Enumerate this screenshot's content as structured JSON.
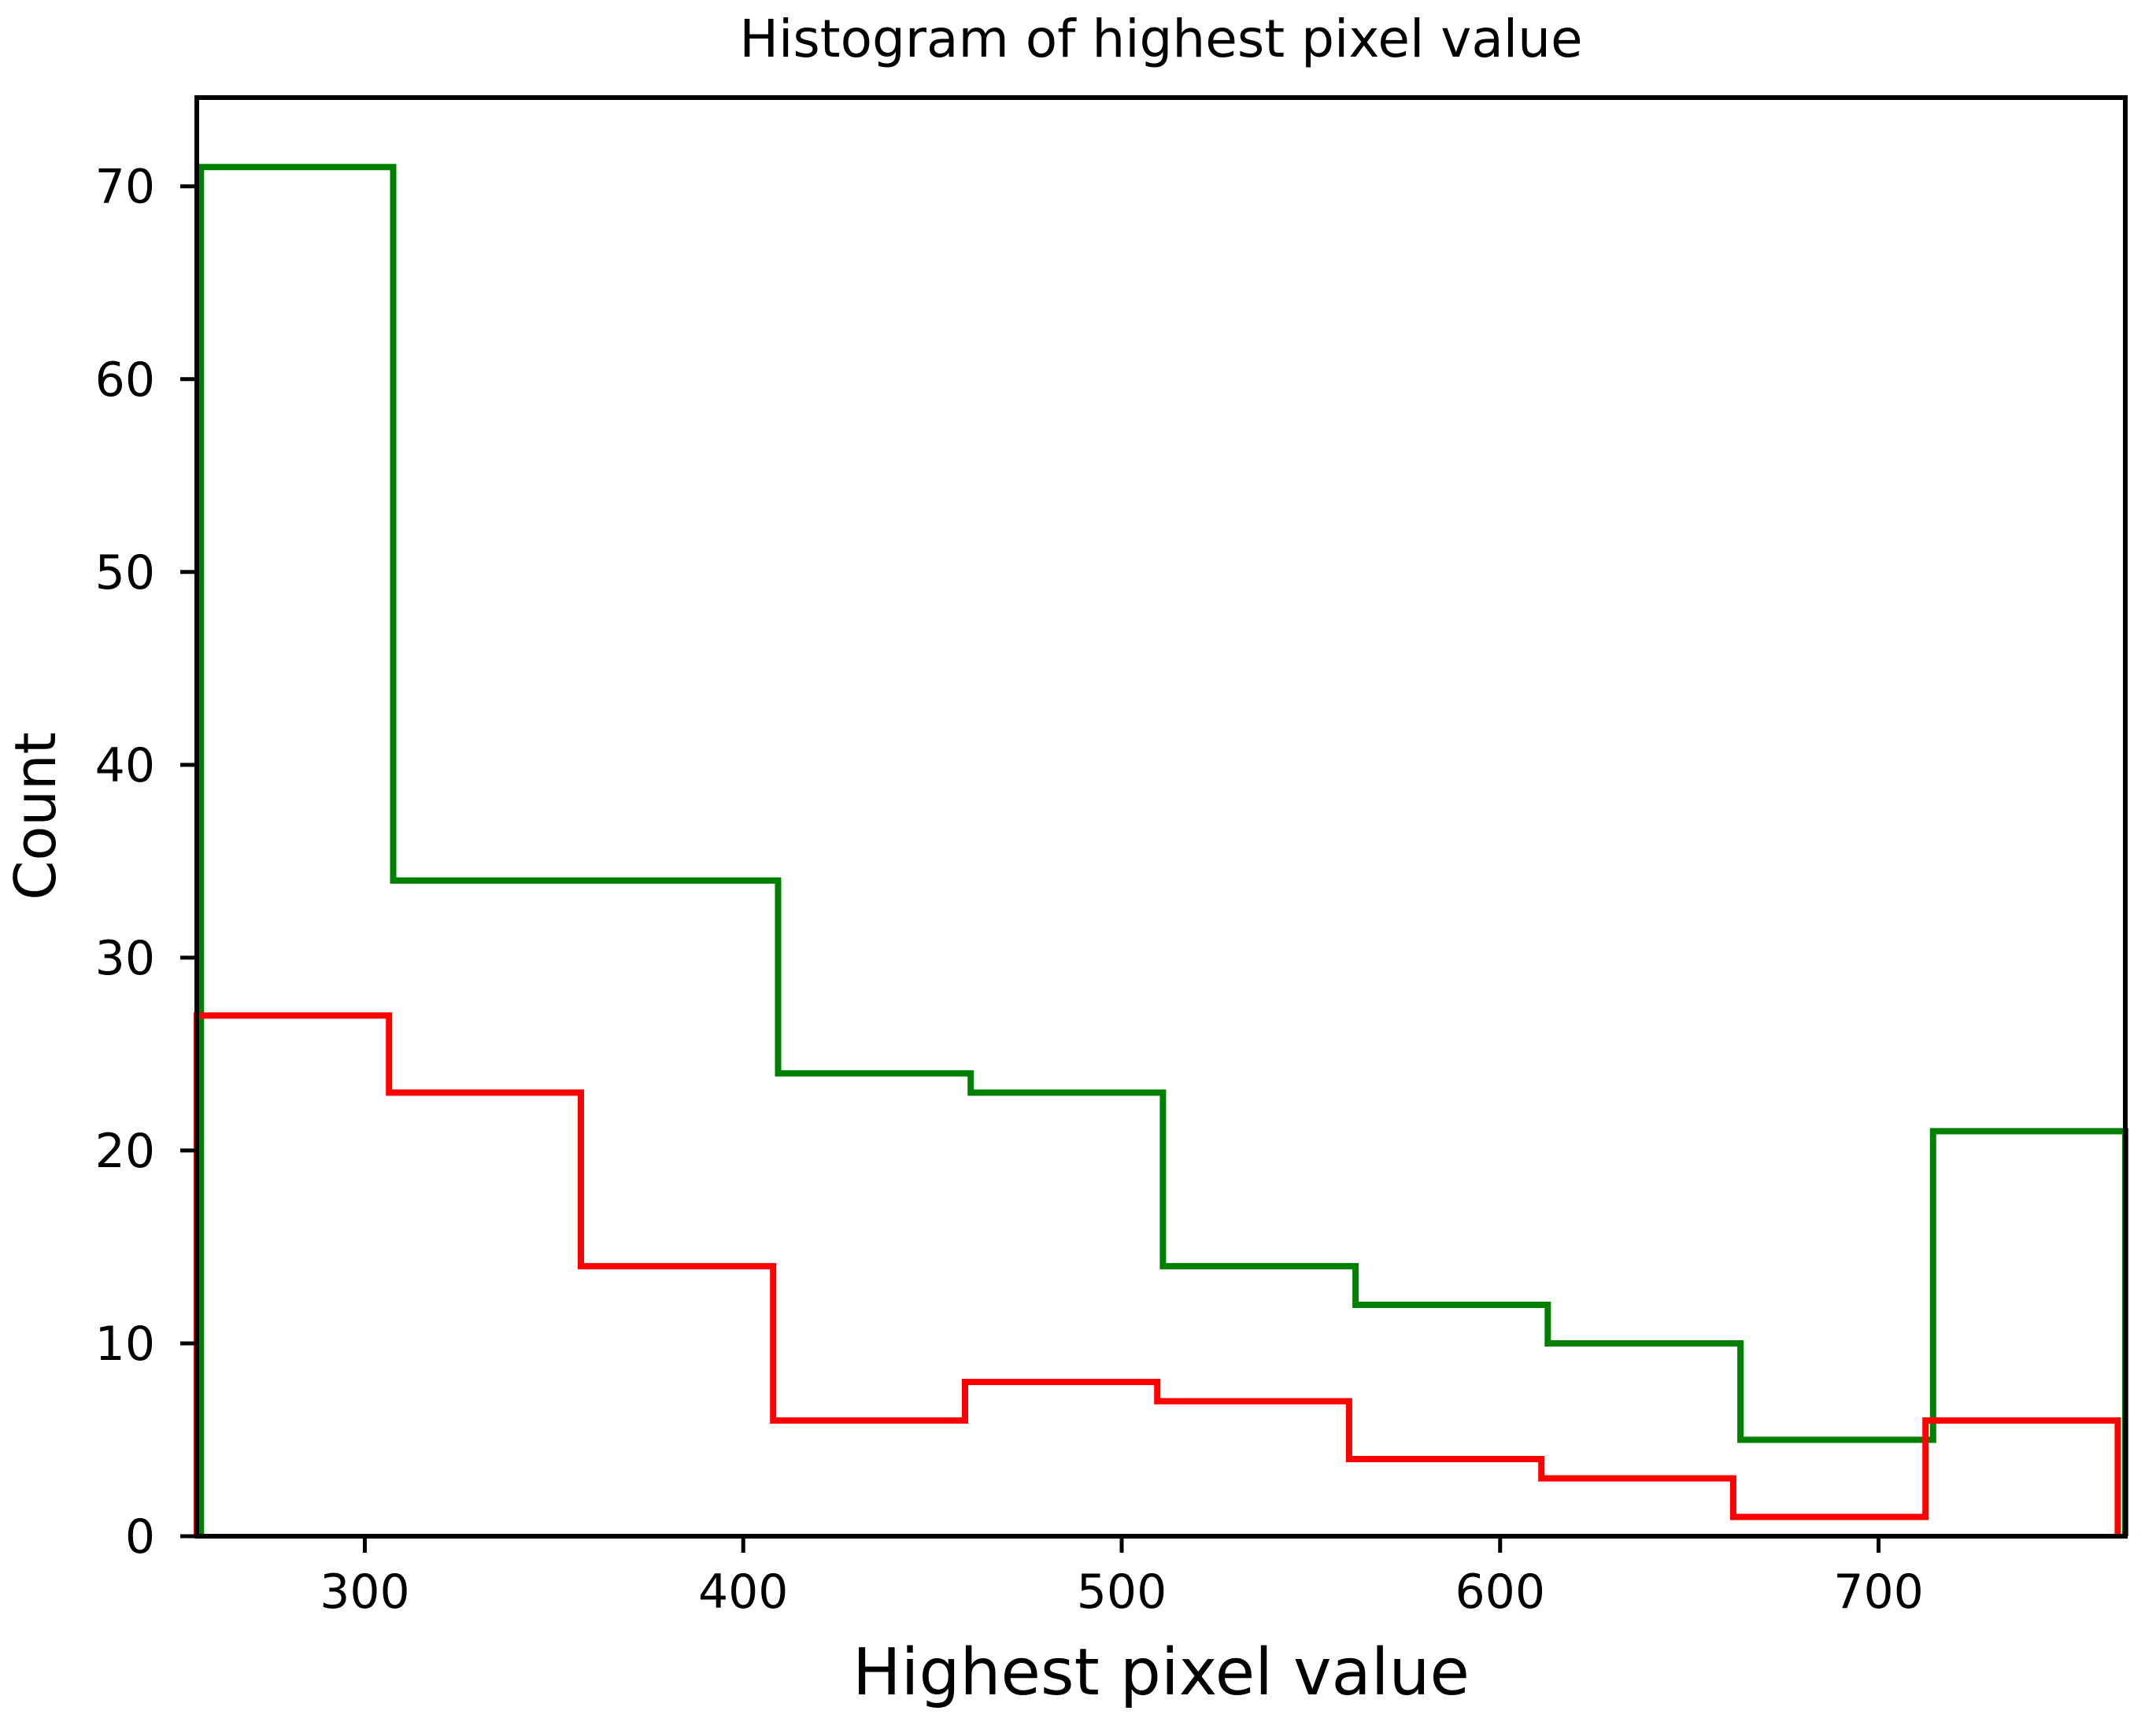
{
  "chart_data": {
    "type": "histogram-step",
    "title": "Histogram of highest pixel value",
    "xlabel": "Highest pixel value",
    "ylabel": "Count",
    "xlim": [
      255.6,
      765.2
    ],
    "ylim": [
      0,
      74.6
    ],
    "xticks": [
      300,
      400,
      500,
      600,
      700
    ],
    "yticks": [
      0,
      10,
      20,
      30,
      40,
      50,
      60,
      70
    ],
    "grid": false,
    "legend": false,
    "background_color": "#ffffff",
    "spine_color": "#000000",
    "series": [
      {
        "name": "green-histogram",
        "color": "#008000",
        "linewidth": 8,
        "bin_edges": [
          256.7,
          307.5,
          358.4,
          409.2,
          460.1,
          510.9,
          561.8,
          612.6,
          663.5,
          714.4,
          765.2
        ],
        "counts": [
          71,
          34,
          34,
          24,
          23,
          14,
          12,
          10,
          5,
          21
        ]
      },
      {
        "name": "red-histogram",
        "color": "#ff0000",
        "linewidth": 8,
        "bin_edges": [
          255.6,
          306.4,
          357.1,
          407.9,
          458.6,
          509.4,
          560.1,
          610.9,
          661.6,
          712.4,
          763.2
        ],
        "counts": [
          27,
          23,
          14,
          6,
          8,
          7,
          4,
          3,
          1,
          6
        ]
      }
    ]
  }
}
